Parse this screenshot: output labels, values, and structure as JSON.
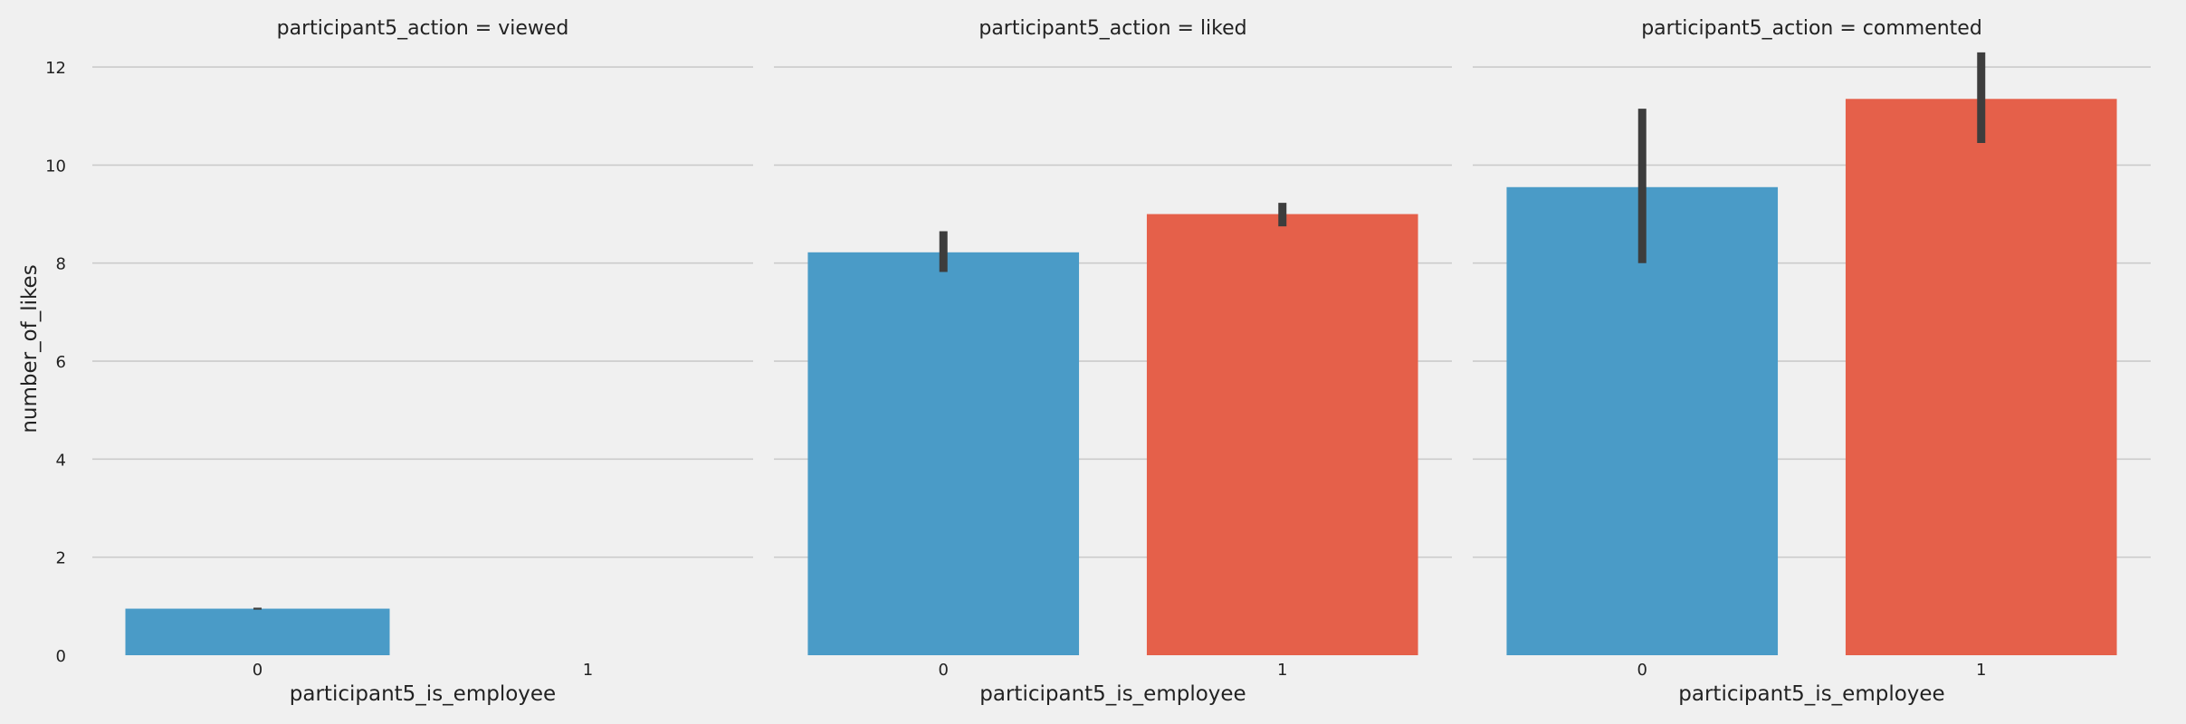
{
  "chart_data": {
    "type": "bar",
    "ylabel": "number_of_likes",
    "xlabel": "participant5_is_employee",
    "ylim": [
      0,
      12.5
    ],
    "yticks": [
      0,
      2,
      4,
      6,
      8,
      10,
      12
    ],
    "categories": [
      "0",
      "1"
    ],
    "colors": [
      "#4a9bc7",
      "#e5604a"
    ],
    "errorbar_color": "#3d3d3d",
    "grid": true,
    "facets": [
      {
        "title": "participant5_action = viewed",
        "values": [
          0.95,
          null
        ],
        "ci": [
          [
            0.93,
            0.97
          ],
          null
        ]
      },
      {
        "title": "participant5_action = liked",
        "values": [
          8.22,
          9.0
        ],
        "ci": [
          [
            7.82,
            8.65
          ],
          [
            8.75,
            9.23
          ]
        ]
      },
      {
        "title": "participant5_action = commented",
        "values": [
          9.55,
          11.35
        ],
        "ci": [
          [
            8.0,
            11.15
          ],
          [
            10.45,
            12.3
          ]
        ]
      }
    ]
  }
}
